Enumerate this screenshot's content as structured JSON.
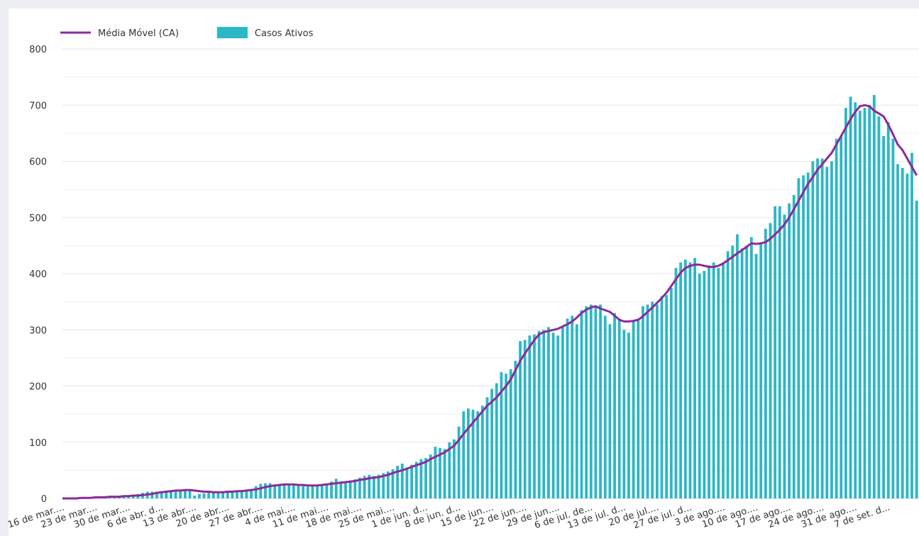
{
  "chart_data": {
    "type": "bar_line",
    "categories": [
      "16 de mar....",
      null,
      null,
      null,
      null,
      null,
      null,
      "23 de mar....",
      null,
      null,
      null,
      null,
      null,
      null,
      "30 de mar....",
      null,
      null,
      null,
      null,
      null,
      null,
      "6 de abr. d...",
      null,
      null,
      null,
      null,
      null,
      null,
      "13 de abr....",
      null,
      null,
      null,
      null,
      null,
      null,
      "20 de abr....",
      null,
      null,
      null,
      null,
      null,
      null,
      "27 de abr....",
      null,
      null,
      null,
      null,
      null,
      null,
      "4 de mai....",
      null,
      null,
      null,
      null,
      null,
      null,
      "11 de mai....",
      null,
      null,
      null,
      null,
      null,
      null,
      "18 de mai....",
      null,
      null,
      null,
      null,
      null,
      null,
      "25 de mai....",
      null,
      null,
      null,
      null,
      null,
      null,
      "1 de jun. d...",
      null,
      null,
      null,
      null,
      null,
      null,
      "8 de jun. d...",
      null,
      null,
      null,
      null,
      null,
      null,
      "15 de jun....",
      null,
      null,
      null,
      null,
      null,
      null,
      "22 de jun....",
      null,
      null,
      null,
      null,
      null,
      null,
      "29 de jun....",
      null,
      null,
      null,
      null,
      null,
      null,
      "6 de jul. de...",
      null,
      null,
      null,
      null,
      null,
      null,
      "13 de jul. d...",
      null,
      null,
      null,
      null,
      null,
      null,
      "20 de jul....",
      null,
      null,
      null,
      null,
      null,
      null,
      "27 de jul. d...",
      null,
      null,
      null,
      null,
      null,
      null,
      "3 de ago....",
      null,
      null,
      null,
      null,
      null,
      null,
      "10 de ago....",
      null,
      null,
      null,
      null,
      null,
      null,
      "17 de ago....",
      null,
      null,
      null,
      null,
      null,
      null,
      "24 de ago....",
      null,
      null,
      null,
      null,
      null,
      null,
      "31 de ago....",
      null,
      null,
      null,
      null,
      null,
      null,
      "7 de set. d...",
      null,
      null,
      null,
      null,
      null,
      null
    ],
    "series": [
      {
        "name": "Média Móvel (CA)",
        "type": "line",
        "color": "#8b2a9c",
        "values": [
          0,
          0,
          0,
          0,
          1,
          1,
          1,
          2,
          2,
          2,
          3,
          3,
          3,
          4,
          4,
          5,
          5,
          6,
          7,
          8,
          10,
          11,
          12,
          13,
          14,
          14,
          15,
          15,
          14,
          13,
          12,
          12,
          11,
          11,
          11,
          12,
          12,
          13,
          13,
          14,
          15,
          16,
          18,
          20,
          22,
          23,
          24,
          25,
          25,
          25,
          24,
          24,
          23,
          23,
          23,
          24,
          25,
          26,
          27,
          28,
          29,
          30,
          31,
          33,
          34,
          36,
          37,
          38,
          40,
          42,
          45,
          48,
          50,
          53,
          56,
          59,
          62,
          65,
          70,
          74,
          78,
          82,
          88,
          94,
          104,
          115,
          125,
          135,
          145,
          155,
          165,
          172,
          180,
          190,
          200,
          212,
          228,
          245,
          258,
          270,
          282,
          292,
          296,
          298,
          300,
          302,
          306,
          310,
          315,
          322,
          330,
          336,
          340,
          342,
          338,
          335,
          332,
          325,
          318,
          315,
          315,
          316,
          318,
          324,
          332,
          340,
          348,
          357,
          366,
          378,
          390,
          402,
          410,
          414,
          416,
          416,
          414,
          412,
          412,
          414,
          418,
          424,
          430,
          436,
          442,
          448,
          454,
          453,
          454,
          456,
          462,
          470,
          478,
          488,
          500,
          515,
          530,
          545,
          560,
          572,
          585,
          595,
          605,
          615,
          630,
          645,
          660,
          675,
          688,
          698,
          700,
          698,
          690,
          685,
          680,
          665,
          648,
          630,
          620,
          605,
          590,
          575
        ]
      },
      {
        "name": "Casos Ativos",
        "type": "bar",
        "color": "#2bb7c5",
        "values": [
          0,
          0,
          0,
          1,
          1,
          2,
          2,
          2,
          3,
          3,
          3,
          4,
          4,
          4,
          5,
          6,
          8,
          10,
          12,
          12,
          12,
          13,
          14,
          14,
          15,
          15,
          16,
          16,
          5,
          8,
          9,
          10,
          10,
          11,
          12,
          12,
          13,
          14,
          15,
          15,
          16,
          22,
          26,
          27,
          27,
          22,
          24,
          25,
          26,
          24,
          23,
          22,
          21,
          22,
          23,
          24,
          26,
          30,
          35,
          30,
          30,
          32,
          34,
          37,
          40,
          42,
          40,
          42,
          45,
          48,
          52,
          58,
          62,
          55,
          60,
          65,
          70,
          72,
          78,
          92,
          90,
          88,
          100,
          105,
          128,
          155,
          160,
          158,
          155,
          165,
          180,
          195,
          205,
          225,
          222,
          230,
          245,
          280,
          282,
          290,
          292,
          298,
          300,
          305,
          295,
          290,
          305,
          320,
          325,
          310,
          335,
          342,
          345,
          340,
          345,
          325,
          310,
          330,
          320,
          300,
          295,
          315,
          320,
          342,
          345,
          350,
          345,
          360,
          362,
          375,
          410,
          420,
          425,
          420,
          428,
          400,
          405,
          415,
          420,
          410,
          420,
          440,
          450,
          470,
          445,
          450,
          465,
          435,
          455,
          480,
          490,
          520,
          520,
          505,
          525,
          540,
          570,
          575,
          580,
          600,
          605,
          605,
          590,
          600,
          640,
          645,
          695,
          715,
          705,
          690,
          695,
          700,
          718,
          680,
          645,
          670,
          640,
          595,
          588,
          578,
          615,
          530
        ]
      }
    ],
    "ylim": [
      0,
      800
    ],
    "yticks": [
      0,
      100,
      200,
      300,
      400,
      500,
      600,
      700,
      800
    ],
    "minor_grid": [
      50,
      150,
      250,
      350,
      450,
      550,
      650,
      750
    ],
    "grid": true,
    "legend": "top-left"
  }
}
